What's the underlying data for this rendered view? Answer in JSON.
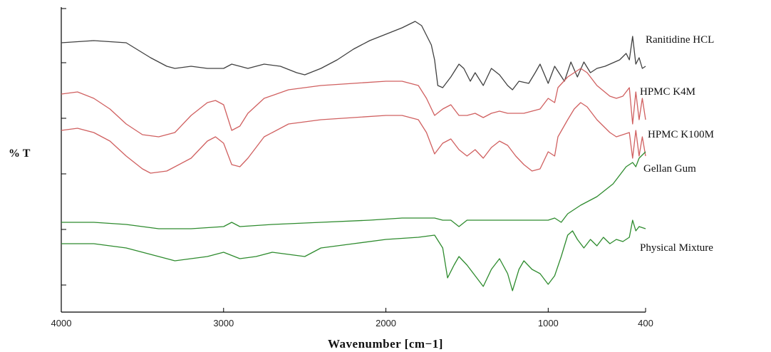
{
  "chart_data": {
    "type": "line",
    "xlabel": "Wavenumber [cm−1]",
    "ylabel": "% T",
    "xlim": [
      4000,
      400
    ],
    "x_reversed": true,
    "x_ticks": [
      4000,
      3000,
      2000,
      1000,
      400
    ],
    "grid": false,
    "legend": "labels placed at right end of each trace",
    "series": [
      {
        "name": "Ranitidine HCL",
        "color": "#404040",
        "points": [
          [
            4000,
            56
          ],
          [
            3800,
            57
          ],
          [
            3600,
            56
          ],
          [
            3450,
            49
          ],
          [
            3350,
            45
          ],
          [
            3300,
            44
          ],
          [
            3200,
            45
          ],
          [
            3100,
            44
          ],
          [
            3000,
            44
          ],
          [
            2950,
            46
          ],
          [
            2850,
            44
          ],
          [
            2750,
            46
          ],
          [
            2650,
            45
          ],
          [
            2550,
            42
          ],
          [
            2500,
            41
          ],
          [
            2400,
            44
          ],
          [
            2300,
            48
          ],
          [
            2200,
            53
          ],
          [
            2100,
            57
          ],
          [
            2000,
            60
          ],
          [
            1900,
            63
          ],
          [
            1820,
            66
          ],
          [
            1780,
            64
          ],
          [
            1720,
            55
          ],
          [
            1700,
            48
          ],
          [
            1680,
            36
          ],
          [
            1650,
            35
          ],
          [
            1600,
            40
          ],
          [
            1550,
            46
          ],
          [
            1520,
            44
          ],
          [
            1480,
            38
          ],
          [
            1450,
            42
          ],
          [
            1400,
            36
          ],
          [
            1350,
            44
          ],
          [
            1300,
            41
          ],
          [
            1250,
            36
          ],
          [
            1220,
            34
          ],
          [
            1180,
            38
          ],
          [
            1120,
            37
          ],
          [
            1080,
            42
          ],
          [
            1050,
            46
          ],
          [
            1000,
            37
          ],
          [
            960,
            45
          ],
          [
            900,
            38
          ],
          [
            860,
            47
          ],
          [
            820,
            40
          ],
          [
            780,
            47
          ],
          [
            740,
            42
          ],
          [
            700,
            44
          ],
          [
            650,
            45
          ],
          [
            560,
            48
          ],
          [
            520,
            51
          ],
          [
            500,
            48
          ],
          [
            480,
            59
          ],
          [
            460,
            46
          ],
          [
            440,
            49
          ],
          [
            420,
            44
          ],
          [
            400,
            45
          ]
        ]
      },
      {
        "name": "HPMC K4M",
        "color": "#d06060",
        "points": [
          [
            4000,
            32
          ],
          [
            3900,
            33
          ],
          [
            3800,
            30
          ],
          [
            3700,
            25
          ],
          [
            3600,
            18
          ],
          [
            3500,
            13
          ],
          [
            3400,
            12
          ],
          [
            3300,
            14
          ],
          [
            3200,
            22
          ],
          [
            3100,
            28
          ],
          [
            3050,
            29
          ],
          [
            3000,
            27
          ],
          [
            2950,
            15
          ],
          [
            2900,
            17
          ],
          [
            2850,
            23
          ],
          [
            2750,
            30
          ],
          [
            2600,
            34
          ],
          [
            2400,
            36
          ],
          [
            2200,
            37
          ],
          [
            2000,
            38
          ],
          [
            1900,
            38
          ],
          [
            1800,
            36
          ],
          [
            1750,
            30
          ],
          [
            1700,
            22
          ],
          [
            1650,
            25
          ],
          [
            1600,
            27
          ],
          [
            1550,
            22
          ],
          [
            1500,
            22
          ],
          [
            1450,
            23
          ],
          [
            1400,
            21
          ],
          [
            1350,
            23
          ],
          [
            1300,
            24
          ],
          [
            1250,
            23
          ],
          [
            1200,
            23
          ],
          [
            1150,
            23
          ],
          [
            1100,
            24
          ],
          [
            1050,
            25
          ],
          [
            1000,
            30
          ],
          [
            960,
            28
          ],
          [
            940,
            35
          ],
          [
            880,
            40
          ],
          [
            840,
            42
          ],
          [
            800,
            44
          ],
          [
            760,
            42
          ],
          [
            700,
            36
          ],
          [
            620,
            31
          ],
          [
            580,
            30
          ],
          [
            540,
            31
          ],
          [
            500,
            35
          ],
          [
            480,
            18
          ],
          [
            460,
            33
          ],
          [
            440,
            20
          ],
          [
            420,
            30
          ],
          [
            400,
            20
          ]
        ]
      },
      {
        "name": "HPMC K100M",
        "color": "#d06060",
        "points": [
          [
            4000,
            15
          ],
          [
            3900,
            16
          ],
          [
            3800,
            14
          ],
          [
            3700,
            10
          ],
          [
            3600,
            3
          ],
          [
            3500,
            -3
          ],
          [
            3450,
            -5
          ],
          [
            3350,
            -4
          ],
          [
            3200,
            2
          ],
          [
            3100,
            10
          ],
          [
            3050,
            12
          ],
          [
            3000,
            9
          ],
          [
            2950,
            -1
          ],
          [
            2900,
            -2
          ],
          [
            2850,
            2
          ],
          [
            2750,
            12
          ],
          [
            2600,
            18
          ],
          [
            2400,
            20
          ],
          [
            2200,
            21
          ],
          [
            2000,
            22
          ],
          [
            1900,
            22
          ],
          [
            1800,
            20
          ],
          [
            1750,
            14
          ],
          [
            1700,
            4
          ],
          [
            1650,
            9
          ],
          [
            1600,
            11
          ],
          [
            1550,
            6
          ],
          [
            1500,
            3
          ],
          [
            1450,
            6
          ],
          [
            1400,
            2
          ],
          [
            1350,
            7
          ],
          [
            1300,
            10
          ],
          [
            1250,
            8
          ],
          [
            1200,
            3
          ],
          [
            1150,
            -1
          ],
          [
            1100,
            -4
          ],
          [
            1050,
            -3
          ],
          [
            1000,
            5
          ],
          [
            960,
            3
          ],
          [
            940,
            12
          ],
          [
            880,
            20
          ],
          [
            840,
            25
          ],
          [
            800,
            28
          ],
          [
            760,
            26
          ],
          [
            700,
            20
          ],
          [
            620,
            14
          ],
          [
            580,
            12
          ],
          [
            540,
            13
          ],
          [
            500,
            14
          ],
          [
            480,
            2
          ],
          [
            460,
            15
          ],
          [
            440,
            3
          ],
          [
            420,
            12
          ],
          [
            400,
            3
          ]
        ]
      },
      {
        "name": "Gellan Gum",
        "color": "#2e8b2e",
        "points": [
          [
            4000,
            -28
          ],
          [
            3800,
            -28
          ],
          [
            3600,
            -29
          ],
          [
            3400,
            -31
          ],
          [
            3200,
            -31
          ],
          [
            3000,
            -30
          ],
          [
            2950,
            -28
          ],
          [
            2900,
            -30
          ],
          [
            2700,
            -29
          ],
          [
            2400,
            -28
          ],
          [
            2100,
            -27
          ],
          [
            1900,
            -26
          ],
          [
            1800,
            -26
          ],
          [
            1700,
            -26
          ],
          [
            1650,
            -27
          ],
          [
            1600,
            -27
          ],
          [
            1550,
            -30
          ],
          [
            1500,
            -27
          ],
          [
            1400,
            -27
          ],
          [
            1200,
            -27
          ],
          [
            1100,
            -27
          ],
          [
            1000,
            -27
          ],
          [
            960,
            -26
          ],
          [
            920,
            -28
          ],
          [
            880,
            -24
          ],
          [
            800,
            -20
          ],
          [
            700,
            -16
          ],
          [
            600,
            -10
          ],
          [
            520,
            -2
          ],
          [
            480,
            0
          ],
          [
            460,
            -2
          ],
          [
            440,
            2
          ],
          [
            400,
            5
          ]
        ]
      },
      {
        "name": "Physical Mixture",
        "color": "#2e8b2e",
        "points": [
          [
            4000,
            -38
          ],
          [
            3800,
            -38
          ],
          [
            3600,
            -40
          ],
          [
            3400,
            -44
          ],
          [
            3300,
            -46
          ],
          [
            3200,
            -45
          ],
          [
            3100,
            -44
          ],
          [
            3000,
            -42
          ],
          [
            2900,
            -45
          ],
          [
            2800,
            -44
          ],
          [
            2700,
            -42
          ],
          [
            2600,
            -43
          ],
          [
            2500,
            -44
          ],
          [
            2400,
            -40
          ],
          [
            2200,
            -38
          ],
          [
            2000,
            -36
          ],
          [
            1800,
            -35
          ],
          [
            1700,
            -34
          ],
          [
            1650,
            -40
          ],
          [
            1620,
            -54
          ],
          [
            1580,
            -48
          ],
          [
            1550,
            -44
          ],
          [
            1500,
            -48
          ],
          [
            1450,
            -53
          ],
          [
            1400,
            -58
          ],
          [
            1350,
            -50
          ],
          [
            1300,
            -45
          ],
          [
            1250,
            -52
          ],
          [
            1220,
            -60
          ],
          [
            1180,
            -50
          ],
          [
            1150,
            -46
          ],
          [
            1100,
            -50
          ],
          [
            1050,
            -52
          ],
          [
            1000,
            -57
          ],
          [
            960,
            -53
          ],
          [
            920,
            -44
          ],
          [
            880,
            -34
          ],
          [
            850,
            -32
          ],
          [
            820,
            -36
          ],
          [
            780,
            -40
          ],
          [
            740,
            -36
          ],
          [
            700,
            -39
          ],
          [
            660,
            -35
          ],
          [
            620,
            -38
          ],
          [
            580,
            -36
          ],
          [
            540,
            -37
          ],
          [
            500,
            -35
          ],
          [
            480,
            -27
          ],
          [
            460,
            -32
          ],
          [
            440,
            -30
          ],
          [
            400,
            -31
          ]
        ]
      }
    ]
  }
}
